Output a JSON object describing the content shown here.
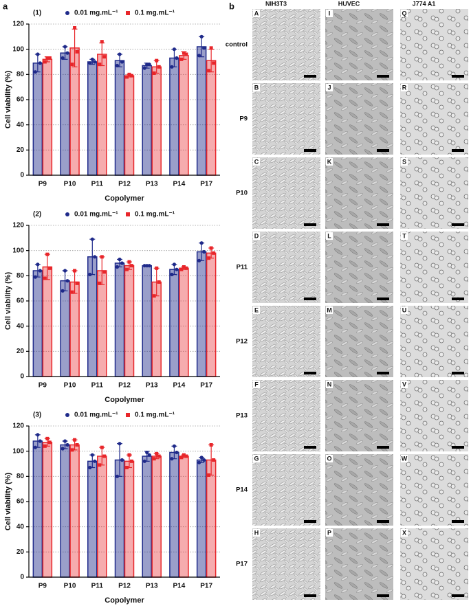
{
  "panel_labels": [
    "a",
    "b"
  ],
  "chart_data": [
    {
      "type": "bar",
      "title": "(1)",
      "xlabel": "Copolymer",
      "ylabel": "Cell viability (%)",
      "categories": [
        "P9",
        "P10",
        "P11",
        "P12",
        "P13",
        "P14",
        "P17"
      ],
      "ylim": [
        0,
        120
      ],
      "yticks": [
        0,
        20,
        40,
        60,
        80,
        100,
        120
      ],
      "grid": true,
      "series": [
        {
          "name": "0.01 mg.mL⁻¹",
          "color": "#1f2a8a",
          "marker": "circle",
          "values": [
            89,
            97,
            90,
            91,
            87,
            93,
            102
          ],
          "errors": [
            7,
            5,
            2,
            5,
            2,
            7,
            8
          ],
          "points": [
            [
              82,
              96,
              89
            ],
            [
              93,
              102,
              97
            ],
            [
              89,
              92,
              90
            ],
            [
              87,
              96,
              90
            ],
            [
              85,
              88,
              88
            ],
            [
              86,
              100,
              93
            ],
            [
              95,
              110,
              101
            ]
          ]
        },
        {
          "name": "0.1 mg.mL⁻¹",
          "color": "#e8262a",
          "marker": "square",
          "values": [
            92,
            101,
            96,
            79,
            86,
            95,
            91
          ],
          "errors": [
            2,
            15,
            9,
            1,
            5,
            3,
            9
          ],
          "points": [
            [
              90,
              93,
              93
            ],
            [
              88,
              117,
              98
            ],
            [
              88,
              106,
              94
            ],
            [
              78,
              80,
              79
            ],
            [
              81,
              91,
              86
            ],
            [
              92,
              97,
              96
            ],
            [
              83,
              101,
              89
            ]
          ]
        }
      ]
    },
    {
      "type": "bar",
      "title": "(2)",
      "xlabel": "Copolymer",
      "ylabel": "Cell viability (%)",
      "categories": [
        "P9",
        "P10",
        "P11",
        "P12",
        "P13",
        "P14",
        "P17"
      ],
      "ylim": [
        0,
        120
      ],
      "yticks": [
        0,
        20,
        40,
        60,
        80,
        100,
        120
      ],
      "grid": true,
      "series": [
        {
          "name": "0.01 mg.mL⁻¹",
          "color": "#1f2a8a",
          "marker": "circle",
          "values": [
            84,
            76,
            95,
            90,
            88,
            85,
            99
          ],
          "errors": [
            5,
            8,
            14,
            3,
            0.5,
            4,
            7
          ],
          "points": [
            [
              79,
              89,
              84
            ],
            [
              68,
              84,
              76
            ],
            [
              81,
              109,
              95
            ],
            [
              87,
              93,
              90
            ],
            [
              88,
              88,
              88
            ],
            [
              81,
              89,
              85
            ],
            [
              92,
              106,
              99
            ]
          ]
        },
        {
          "name": "0.1 mg.mL⁻¹",
          "color": "#e8262a",
          "marker": "square",
          "values": [
            87,
            75,
            84,
            88,
            75,
            86,
            98
          ],
          "errors": [
            10,
            9,
            11,
            3,
            11,
            1,
            4
          ],
          "points": [
            [
              78,
              97,
              86
            ],
            [
              67,
              84,
              74
            ],
            [
              74,
              95,
              83
            ],
            [
              85,
              91,
              88
            ],
            [
              64,
              86,
              75
            ],
            [
              85,
              87,
              86
            ],
            [
              94,
              102,
              98
            ]
          ]
        }
      ]
    },
    {
      "type": "bar",
      "title": "(3)",
      "xlabel": "Copolymer",
      "ylabel": "Cell viability (%)",
      "categories": [
        "P9",
        "P10",
        "P11",
        "P12",
        "P13",
        "P14",
        "P17"
      ],
      "ylim": [
        0,
        120
      ],
      "yticks": [
        0,
        20,
        40,
        60,
        80,
        100,
        120
      ],
      "grid": true,
      "series": [
        {
          "name": "0.01 mg.mL⁻¹",
          "color": "#1f2a8a",
          "marker": "circle",
          "values": [
            108,
            105,
            92,
            93,
            96,
            99,
            93
          ],
          "errors": [
            5,
            3,
            5,
            13,
            4,
            5,
            2
          ],
          "points": [
            [
              103,
              113,
              108
            ],
            [
              102,
              108,
              105
            ],
            [
              87,
              97,
              92
            ],
            [
              80,
              106,
              93
            ],
            [
              92,
              99,
              97
            ],
            [
              94,
              104,
              99
            ],
            [
              91,
              95,
              93
            ]
          ]
        },
        {
          "name": "0.1 mg.mL⁻¹",
          "color": "#e8262a",
          "marker": "square",
          "values": [
            107,
            105,
            96,
            92,
            96,
            96,
            93
          ],
          "errors": [
            3,
            4,
            7,
            5,
            2,
            1,
            12
          ],
          "points": [
            [
              104,
              110,
              107
            ],
            [
              101,
              109,
              105
            ],
            [
              89,
              103,
              96
            ],
            [
              87,
              97,
              92
            ],
            [
              94,
              98,
              96
            ],
            [
              95,
              97,
              96
            ],
            [
              81,
              105,
              93
            ]
          ]
        }
      ]
    }
  ],
  "panel_b": {
    "columns": [
      "NIH3T3",
      "HUVEC",
      "J774 A1"
    ],
    "rows": [
      "control",
      "P9",
      "P10",
      "P11",
      "P12",
      "P13",
      "P14",
      "P17"
    ],
    "tiles": [
      [
        "A",
        "I",
        "Q"
      ],
      [
        "B",
        "J",
        "R"
      ],
      [
        "C",
        "K",
        "S"
      ],
      [
        "D",
        "L",
        "T"
      ],
      [
        "E",
        "M",
        "U"
      ],
      [
        "F",
        "N",
        "V"
      ],
      [
        "G",
        "O",
        "W"
      ],
      [
        "H",
        "P",
        "X"
      ]
    ]
  }
}
